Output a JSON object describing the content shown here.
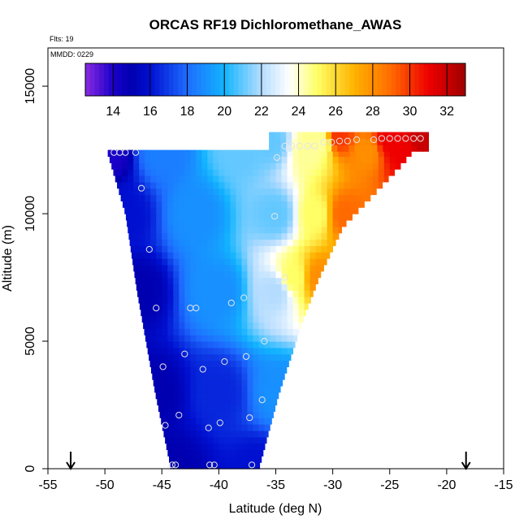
{
  "chart_data": {
    "type": "heatmap",
    "title": "ORCAS RF19 Dichloromethane_AWAS",
    "annotations": {
      "flights": "Flts: 19",
      "date": "MMDD: 0229"
    },
    "xlabel": "Latitude (deg N)",
    "ylabel": "Altitude (m)",
    "xlim": [
      -55,
      -15
    ],
    "ylim": [
      0,
      16500
    ],
    "x_ticks": [
      -55,
      -50,
      -45,
      -40,
      -35,
      -30,
      -25,
      -20,
      -15
    ],
    "y_ticks": [
      0,
      5000,
      10000,
      15000
    ],
    "colorbar": {
      "range": [
        12.5,
        33
      ],
      "ticks": [
        14,
        16,
        18,
        20,
        22,
        24,
        26,
        28,
        30,
        32
      ],
      "stops": [
        {
          "v": 12.5,
          "c": "#8a2be2"
        },
        {
          "v": 14,
          "c": "#1a00c8"
        },
        {
          "v": 15,
          "c": "#0000b0"
        },
        {
          "v": 16,
          "c": "#0010d0"
        },
        {
          "v": 18,
          "c": "#1e6cff"
        },
        {
          "v": 20,
          "c": "#12b4ff"
        },
        {
          "v": 22,
          "c": "#b4dcff"
        },
        {
          "v": 23.5,
          "c": "#ffffff"
        },
        {
          "v": 25,
          "c": "#ffff66"
        },
        {
          "v": 27,
          "c": "#ffb300"
        },
        {
          "v": 29,
          "c": "#ff6a00"
        },
        {
          "v": 31,
          "c": "#ee0000"
        },
        {
          "v": 33,
          "c": "#a00000"
        }
      ]
    },
    "field": {
      "left_edge": [
        [
          0,
          -44.2
        ],
        [
          3000,
          -45.6
        ],
        [
          7000,
          -47.2
        ],
        [
          10000,
          -48.2
        ],
        [
          12450,
          -49.8
        ]
      ],
      "right_edge": [
        [
          0,
          -36.5
        ],
        [
          3000,
          -34.7
        ],
        [
          6000,
          -32.5
        ],
        [
          7500,
          -31.2
        ],
        [
          9500,
          -29.1
        ],
        [
          12000,
          -23.8
        ],
        [
          13000,
          -22
        ]
      ],
      "top_altitude": 12450,
      "upper_band": {
        "altitude_range": [
          12450,
          13000
        ],
        "lat_range": [
          -35.6,
          -22
        ]
      },
      "samples": [
        {
          "lat": -44.2,
          "alt": 0,
          "v": 15
        },
        {
          "lat": -36.5,
          "alt": 0,
          "v": 16
        },
        {
          "lat": -45.6,
          "alt": 3000,
          "v": 15
        },
        {
          "lat": -40,
          "alt": 3000,
          "v": 16.5
        },
        {
          "lat": -34.7,
          "alt": 3000,
          "v": 19
        },
        {
          "lat": -47.2,
          "alt": 7000,
          "v": 15
        },
        {
          "lat": -40,
          "alt": 7000,
          "v": 19
        },
        {
          "lat": -35,
          "alt": 7000,
          "v": 22
        },
        {
          "lat": -33.5,
          "alt": 7500,
          "v": 25
        },
        {
          "lat": -31.2,
          "alt": 7500,
          "v": 28
        },
        {
          "lat": -48.2,
          "alt": 10000,
          "v": 16
        },
        {
          "lat": -42,
          "alt": 10000,
          "v": 19
        },
        {
          "lat": -35,
          "alt": 10000,
          "v": 21
        },
        {
          "lat": -31.5,
          "alt": 10000,
          "v": 25
        },
        {
          "lat": -29,
          "alt": 10000,
          "v": 29
        },
        {
          "lat": -49.8,
          "alt": 12450,
          "v": 14
        },
        {
          "lat": -45,
          "alt": 12450,
          "v": 18.5
        },
        {
          "lat": -38,
          "alt": 12450,
          "v": 21
        },
        {
          "lat": -32,
          "alt": 12450,
          "v": 24.5
        },
        {
          "lat": -27,
          "alt": 12450,
          "v": 28
        },
        {
          "lat": -24,
          "alt": 12450,
          "v": 31
        },
        {
          "lat": -35.5,
          "alt": 12800,
          "v": 21
        },
        {
          "lat": -31,
          "alt": 12800,
          "v": 24.5
        },
        {
          "lat": -29.5,
          "alt": 13000,
          "v": 30
        },
        {
          "lat": -25,
          "alt": 12900,
          "v": 31
        },
        {
          "lat": -22,
          "alt": 12900,
          "v": 32
        }
      ]
    },
    "points": [
      {
        "lat": -49.2,
        "alt": 12400
      },
      {
        "lat": -48.7,
        "alt": 12400
      },
      {
        "lat": -48.2,
        "alt": 12400
      },
      {
        "lat": -47.3,
        "alt": 12400
      },
      {
        "lat": -46.8,
        "alt": 11000
      },
      {
        "lat": -46.1,
        "alt": 8600
      },
      {
        "lat": -45.5,
        "alt": 6300
      },
      {
        "lat": -42.5,
        "alt": 6300
      },
      {
        "lat": -42.0,
        "alt": 6300
      },
      {
        "lat": -38.9,
        "alt": 6500
      },
      {
        "lat": -37.8,
        "alt": 6700
      },
      {
        "lat": -35.1,
        "alt": 9900
      },
      {
        "lat": -34.9,
        "alt": 12200
      },
      {
        "lat": -34.2,
        "alt": 7500
      },
      {
        "lat": -36.0,
        "alt": 5000
      },
      {
        "lat": -37.6,
        "alt": 4400
      },
      {
        "lat": -43.0,
        "alt": 4500
      },
      {
        "lat": -44.9,
        "alt": 4000
      },
      {
        "lat": -41.4,
        "alt": 3900
      },
      {
        "lat": -39.5,
        "alt": 4200
      },
      {
        "lat": -36.2,
        "alt": 2700
      },
      {
        "lat": -43.5,
        "alt": 2100
      },
      {
        "lat": -44.7,
        "alt": 1700
      },
      {
        "lat": -40.9,
        "alt": 1600
      },
      {
        "lat": -39.9,
        "alt": 1800
      },
      {
        "lat": -37.3,
        "alt": 2000
      },
      {
        "lat": -44.1,
        "alt": 150
      },
      {
        "lat": -43.8,
        "alt": 150
      },
      {
        "lat": -40.8,
        "alt": 150
      },
      {
        "lat": -40.4,
        "alt": 150
      },
      {
        "lat": -37.1,
        "alt": 150
      },
      {
        "lat": -34.2,
        "alt": 12650
      },
      {
        "lat": -33.6,
        "alt": 12650
      },
      {
        "lat": -32.9,
        "alt": 12650
      },
      {
        "lat": -32.2,
        "alt": 12650
      },
      {
        "lat": -31.6,
        "alt": 12650
      },
      {
        "lat": -30.8,
        "alt": 12800
      },
      {
        "lat": -30.1,
        "alt": 12800
      },
      {
        "lat": -29.4,
        "alt": 12850
      },
      {
        "lat": -28.7,
        "alt": 12850
      },
      {
        "lat": -27.9,
        "alt": 12900
      },
      {
        "lat": -26.4,
        "alt": 12900
      },
      {
        "lat": -25.7,
        "alt": 12950
      },
      {
        "lat": -25.0,
        "alt": 12950
      },
      {
        "lat": -24.3,
        "alt": 12950
      },
      {
        "lat": -23.6,
        "alt": 12950
      },
      {
        "lat": -22.9,
        "alt": 12950
      },
      {
        "lat": -22.3,
        "alt": 12950
      }
    ],
    "arrows": [
      {
        "lat": -53.0
      },
      {
        "lat": -18.3
      }
    ]
  }
}
